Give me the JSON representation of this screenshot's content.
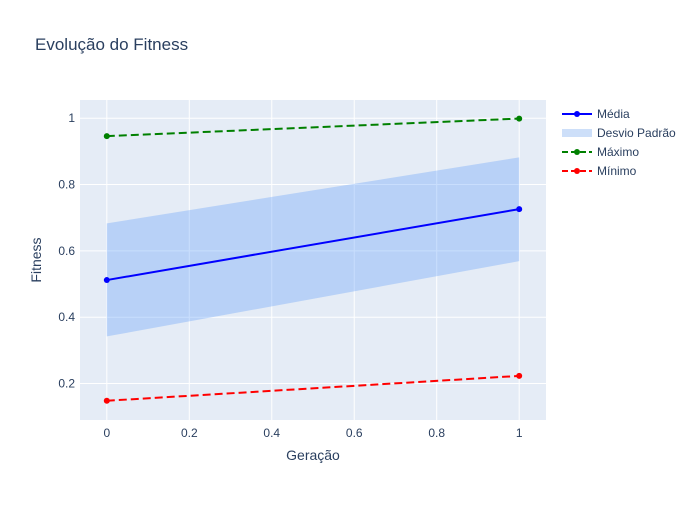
{
  "chart_data": {
    "type": "line",
    "title": "Evolução do Fitness",
    "xlabel": "Geração",
    "ylabel": "Fitness",
    "x": [
      0,
      1
    ],
    "xlim": [
      -0.065,
      1.065
    ],
    "ylim": [
      0.09,
      1.055
    ],
    "x_ticks": [
      0,
      0.2,
      0.4,
      0.6,
      0.8,
      1
    ],
    "x_tick_labels": [
      "0",
      "0.2",
      "0.4",
      "0.6",
      "0.8",
      "1"
    ],
    "y_ticks": [
      0.2,
      0.4,
      0.6,
      0.8,
      1
    ],
    "y_tick_labels": [
      "0.2",
      "0.4",
      "0.6",
      "0.8",
      "1"
    ],
    "grid": true,
    "legend_position": "right",
    "plot_background": "#e5ecf6",
    "series": [
      {
        "name": "Média",
        "kind": "line",
        "line_style": "solid",
        "markers": true,
        "color": "#0000ff",
        "values": [
          0.512,
          0.726
        ]
      },
      {
        "name": "Desvio Padrão",
        "kind": "band",
        "color": "rgba(100,160,250,0.35)",
        "legend_color": "#cddff9",
        "upper": [
          0.683,
          0.882
        ],
        "lower": [
          0.342,
          0.569
        ]
      },
      {
        "name": "Máximo",
        "kind": "line",
        "line_style": "dashed",
        "markers": true,
        "color": "#008000",
        "values": [
          0.946,
          0.999
        ]
      },
      {
        "name": "Mínimo",
        "kind": "line",
        "line_style": "dashed",
        "markers": true,
        "color": "#ff0000",
        "values": [
          0.148,
          0.223
        ]
      }
    ]
  }
}
